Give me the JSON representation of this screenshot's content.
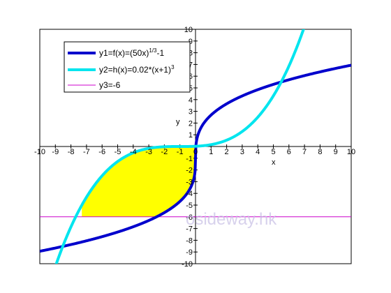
{
  "chart_data": {
    "type": "line",
    "title": "",
    "xlabel": "x",
    "ylabel": "y",
    "xlim": [
      -10,
      10
    ],
    "ylim": [
      -10,
      10
    ],
    "x_ticks": [
      -10,
      -9,
      -8,
      -7,
      -6,
      -5,
      -4,
      -3,
      -2,
      -1,
      0,
      1,
      2,
      3,
      4,
      5,
      6,
      7,
      8,
      9,
      10
    ],
    "y_ticks": [
      -10,
      -9,
      -8,
      -7,
      -6,
      -5,
      -4,
      -3,
      -2,
      -1,
      0,
      1,
      2,
      3,
      4,
      5,
      6,
      7,
      8,
      9,
      10
    ],
    "grid": false,
    "legend_position": "top-left",
    "series": [
      {
        "name": "y1=f(x)=(50x)^(1/3)-1",
        "legend_base": "y1=f(x)=(50x)",
        "legend_sup": "1/3",
        "legend_tail": "-1",
        "color": "#0000cc",
        "x": [
          -10,
          -9,
          -8,
          -7,
          -6,
          -5,
          -4,
          -3,
          -2,
          -1,
          -0.5,
          -0.1,
          0,
          0.1,
          0.5,
          1,
          2,
          3,
          4,
          5,
          6,
          7,
          8,
          9,
          10
        ],
        "y": [
          -8.94,
          -8.66,
          -8.37,
          -8.05,
          -7.69,
          -7.3,
          -6.85,
          -6.31,
          -5.64,
          -4.68,
          -3.92,
          -2.71,
          -1,
          0.71,
          1.92,
          2.68,
          3.64,
          4.31,
          4.85,
          5.3,
          5.69,
          6.05,
          6.37,
          6.66,
          6.94
        ]
      },
      {
        "name": "y2=h(x)=0.02*(x+1)^3",
        "legend_base": "y2=h(x)=0.02*(x+1)",
        "legend_sup": "3",
        "legend_tail": "",
        "color": "#00e5ee",
        "x": [
          -9.2,
          -9,
          -8,
          -7,
          -6,
          -5,
          -4,
          -3,
          -2,
          -1,
          0,
          1,
          2,
          3,
          4,
          5,
          6,
          7.0
        ],
        "y": [
          -11.03,
          -10.24,
          -6.86,
          -4.32,
          -2.5,
          -1.28,
          -0.54,
          -0.16,
          -0.02,
          0,
          0.02,
          0.16,
          0.54,
          1.28,
          2.5,
          4.32,
          6.86,
          10.24
        ]
      },
      {
        "name": "y3=-6",
        "legend_base": "y3=-6",
        "legend_sup": "",
        "legend_tail": "",
        "color": "#cc00cc",
        "x": [
          -10,
          10
        ],
        "y": [
          -6,
          -6
        ]
      }
    ],
    "fill_color": "#ffff00",
    "watermark": "osideway.hk"
  }
}
